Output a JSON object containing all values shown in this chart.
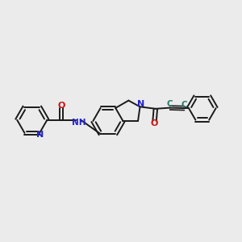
{
  "background_color": "#ebebeb",
  "bond_color": "#1a1a1a",
  "N_color": "#2222cc",
  "O_color": "#cc1111",
  "C_color": "#2a7a6a",
  "figsize": [
    3.0,
    3.0
  ],
  "dpi": 100,
  "xlim": [
    0,
    12
  ],
  "ylim": [
    2,
    8
  ]
}
